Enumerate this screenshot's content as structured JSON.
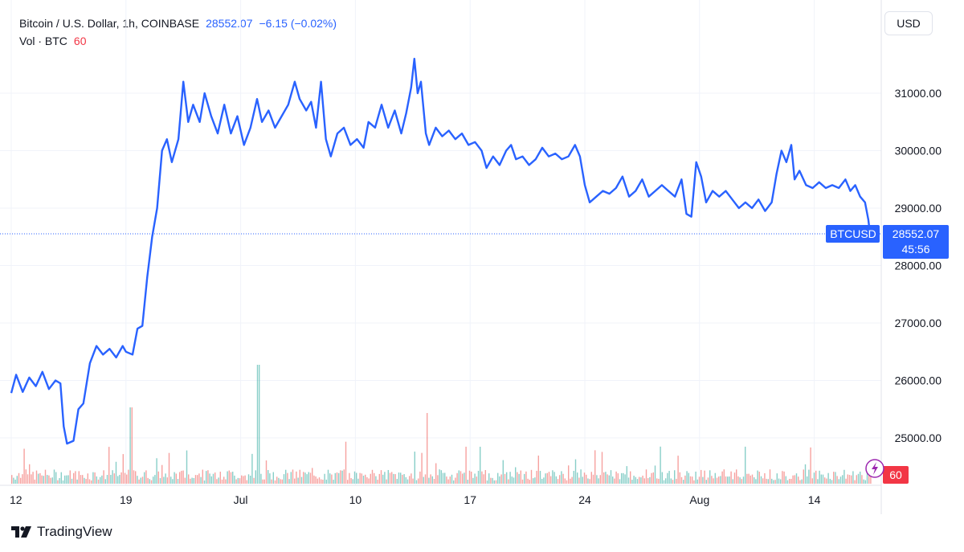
{
  "legend": {
    "symbol_line": "Bitcoin / U.S. Dollar, 1h, COINBASE",
    "last_price": "28552.07",
    "change": "−6.15 (−0.02%)",
    "vol_label": "Vol · BTC",
    "vol_value": "60"
  },
  "currency_button": "USD",
  "branding": "TradingView",
  "price_tag": {
    "symbol": "BTCUSD",
    "price": "28552.07",
    "countdown": "45:56"
  },
  "volume_tag": "60",
  "colors": {
    "line": "#2962ff",
    "vol_up": "#26a69a",
    "vol_down": "#ef5350",
    "tag": "#2962ff",
    "vol_tag": "#f23645"
  },
  "chart_data": {
    "type": "line",
    "symbol": "BTCUSD",
    "y_axis": {
      "min": 24400,
      "max": 31800,
      "ticks": [
        25000,
        26000,
        27000,
        28000,
        29000,
        30000,
        31000
      ],
      "tick_labels": [
        "25000.00",
        "26000.00",
        "27000.00",
        "28000.00",
        "29000.00",
        "30000.00",
        "31000.00"
      ]
    },
    "x_axis": {
      "range": [
        12,
        64.5
      ],
      "ticks": [
        {
          "x": 12,
          "label": "12"
        },
        {
          "x": 19,
          "label": "19"
        },
        {
          "x": 26,
          "label": "Jul"
        },
        {
          "x": 33,
          "label": "10"
        },
        {
          "x": 40,
          "label": "17"
        },
        {
          "x": 47,
          "label": "24"
        },
        {
          "x": 54,
          "label": "Aug"
        },
        {
          "x": 61,
          "label": "14"
        }
      ]
    },
    "last_value": 28552.07,
    "series": [
      {
        "points": [
          [
            12.0,
            25780
          ],
          [
            12.3,
            26100
          ],
          [
            12.7,
            25800
          ],
          [
            13.1,
            26050
          ],
          [
            13.5,
            25900
          ],
          [
            13.9,
            26150
          ],
          [
            14.3,
            25850
          ],
          [
            14.7,
            26000
          ],
          [
            15.0,
            25950
          ],
          [
            15.2,
            25200
          ],
          [
            15.4,
            24900
          ],
          [
            15.8,
            24950
          ],
          [
            16.1,
            25500
          ],
          [
            16.4,
            25600
          ],
          [
            16.8,
            26300
          ],
          [
            17.2,
            26600
          ],
          [
            17.6,
            26450
          ],
          [
            18.0,
            26550
          ],
          [
            18.4,
            26400
          ],
          [
            18.8,
            26600
          ],
          [
            19.0,
            26500
          ],
          [
            19.4,
            26450
          ],
          [
            19.7,
            26900
          ],
          [
            20.0,
            26950
          ],
          [
            20.3,
            27800
          ],
          [
            20.6,
            28500
          ],
          [
            20.9,
            29000
          ],
          [
            21.2,
            30000
          ],
          [
            21.5,
            30200
          ],
          [
            21.8,
            29800
          ],
          [
            22.2,
            30200
          ],
          [
            22.5,
            31200
          ],
          [
            22.8,
            30500
          ],
          [
            23.1,
            30800
          ],
          [
            23.5,
            30500
          ],
          [
            23.8,
            31000
          ],
          [
            24.2,
            30600
          ],
          [
            24.6,
            30300
          ],
          [
            25.0,
            30800
          ],
          [
            25.4,
            30300
          ],
          [
            25.8,
            30600
          ],
          [
            26.2,
            30100
          ],
          [
            26.6,
            30400
          ],
          [
            27.0,
            30900
          ],
          [
            27.3,
            30500
          ],
          [
            27.7,
            30700
          ],
          [
            28.1,
            30400
          ],
          [
            28.5,
            30600
          ],
          [
            28.9,
            30800
          ],
          [
            29.3,
            31200
          ],
          [
            29.6,
            30900
          ],
          [
            30.0,
            30700
          ],
          [
            30.3,
            30850
          ],
          [
            30.6,
            30400
          ],
          [
            30.9,
            31200
          ],
          [
            31.2,
            30200
          ],
          [
            31.5,
            29900
          ],
          [
            31.9,
            30300
          ],
          [
            32.3,
            30400
          ],
          [
            32.7,
            30100
          ],
          [
            33.1,
            30200
          ],
          [
            33.5,
            30050
          ],
          [
            33.8,
            30500
          ],
          [
            34.2,
            30400
          ],
          [
            34.6,
            30800
          ],
          [
            35.0,
            30400
          ],
          [
            35.4,
            30700
          ],
          [
            35.8,
            30300
          ],
          [
            36.1,
            30650
          ],
          [
            36.4,
            31100
          ],
          [
            36.6,
            31600
          ],
          [
            36.8,
            31000
          ],
          [
            37.0,
            31200
          ],
          [
            37.3,
            30300
          ],
          [
            37.5,
            30100
          ],
          [
            37.9,
            30400
          ],
          [
            38.3,
            30250
          ],
          [
            38.7,
            30350
          ],
          [
            39.1,
            30200
          ],
          [
            39.5,
            30300
          ],
          [
            39.9,
            30100
          ],
          [
            40.3,
            30150
          ],
          [
            40.7,
            30000
          ],
          [
            41.0,
            29700
          ],
          [
            41.4,
            29900
          ],
          [
            41.8,
            29750
          ],
          [
            42.2,
            30000
          ],
          [
            42.5,
            30100
          ],
          [
            42.8,
            29850
          ],
          [
            43.2,
            29900
          ],
          [
            43.6,
            29750
          ],
          [
            44.0,
            29850
          ],
          [
            44.4,
            30050
          ],
          [
            44.8,
            29900
          ],
          [
            45.2,
            29950
          ],
          [
            45.6,
            29850
          ],
          [
            46.0,
            29900
          ],
          [
            46.4,
            30100
          ],
          [
            46.7,
            29900
          ],
          [
            47.0,
            29400
          ],
          [
            47.3,
            29100
          ],
          [
            47.7,
            29200
          ],
          [
            48.1,
            29300
          ],
          [
            48.5,
            29250
          ],
          [
            48.9,
            29350
          ],
          [
            49.3,
            29550
          ],
          [
            49.7,
            29200
          ],
          [
            50.1,
            29300
          ],
          [
            50.5,
            29500
          ],
          [
            50.9,
            29200
          ],
          [
            51.3,
            29300
          ],
          [
            51.7,
            29400
          ],
          [
            52.1,
            29300
          ],
          [
            52.5,
            29200
          ],
          [
            52.9,
            29500
          ],
          [
            53.2,
            28900
          ],
          [
            53.5,
            28850
          ],
          [
            53.8,
            29800
          ],
          [
            54.1,
            29550
          ],
          [
            54.4,
            29100
          ],
          [
            54.8,
            29300
          ],
          [
            55.2,
            29200
          ],
          [
            55.6,
            29300
          ],
          [
            56.0,
            29150
          ],
          [
            56.4,
            29000
          ],
          [
            56.8,
            29100
          ],
          [
            57.2,
            29000
          ],
          [
            57.6,
            29150
          ],
          [
            58.0,
            28950
          ],
          [
            58.4,
            29100
          ],
          [
            58.7,
            29600
          ],
          [
            59.0,
            30000
          ],
          [
            59.3,
            29800
          ],
          [
            59.6,
            30100
          ],
          [
            59.8,
            29500
          ],
          [
            60.1,
            29650
          ],
          [
            60.5,
            29400
          ],
          [
            60.9,
            29350
          ],
          [
            61.3,
            29450
          ],
          [
            61.7,
            29350
          ],
          [
            62.1,
            29400
          ],
          [
            62.5,
            29350
          ],
          [
            62.9,
            29500
          ],
          [
            63.2,
            29300
          ],
          [
            63.5,
            29400
          ],
          [
            63.8,
            29200
          ],
          [
            64.1,
            29100
          ],
          [
            64.3,
            28800
          ],
          [
            64.4,
            28552
          ]
        ]
      }
    ]
  }
}
